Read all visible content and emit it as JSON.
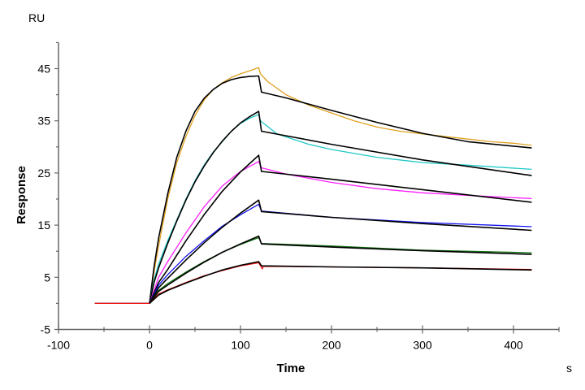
{
  "chart_data": {
    "type": "line",
    "xlabel": "Time",
    "ylabel": "Response",
    "x_unit": "s",
    "y_unit": "RU",
    "xlim": [
      -100,
      450
    ],
    "ylim": [
      -5,
      50
    ],
    "x_ticks": [
      "-100",
      "0",
      "100",
      "200",
      "300",
      "400"
    ],
    "y_ticks": [
      "-5",
      "5",
      "15",
      "25",
      "35",
      "45"
    ],
    "grid": false,
    "legend": "none",
    "series": [
      {
        "role": "data",
        "color": "#E0A020",
        "points": [
          [
            -60,
            0
          ],
          [
            0,
            0
          ],
          [
            5,
            6
          ],
          [
            10,
            11
          ],
          [
            20,
            20
          ],
          [
            30,
            27
          ],
          [
            40,
            32
          ],
          [
            50,
            36
          ],
          [
            60,
            39
          ],
          [
            70,
            41
          ],
          [
            80,
            42.3
          ],
          [
            90,
            43.3
          ],
          [
            100,
            44
          ],
          [
            110,
            44.6
          ],
          [
            120,
            45.2
          ],
          [
            122,
            44
          ],
          [
            130,
            42.5
          ],
          [
            150,
            40
          ],
          [
            175,
            38
          ],
          [
            200,
            36.5
          ],
          [
            225,
            35
          ],
          [
            250,
            33.8
          ],
          [
            275,
            33
          ],
          [
            300,
            32.5
          ],
          [
            325,
            32
          ],
          [
            350,
            31.5
          ],
          [
            375,
            31
          ],
          [
            400,
            30.7
          ],
          [
            420,
            30.3
          ]
        ]
      },
      {
        "role": "fit",
        "color": "#000000",
        "points": [
          [
            0,
            0
          ],
          [
            5,
            7
          ],
          [
            10,
            12.5
          ],
          [
            20,
            21
          ],
          [
            30,
            28
          ],
          [
            40,
            33
          ],
          [
            50,
            36.8
          ],
          [
            60,
            39.3
          ],
          [
            70,
            41
          ],
          [
            80,
            42.2
          ],
          [
            90,
            42.9
          ],
          [
            100,
            43.3
          ],
          [
            110,
            43.5
          ],
          [
            120,
            43.6
          ],
          [
            123,
            40.5
          ],
          [
            150,
            39.4
          ],
          [
            200,
            37
          ],
          [
            250,
            34.7
          ],
          [
            300,
            32.6
          ],
          [
            350,
            31
          ],
          [
            420,
            29.8
          ]
        ]
      },
      {
        "role": "data",
        "color": "#20C8C8",
        "points": [
          [
            -60,
            0
          ],
          [
            0,
            0
          ],
          [
            5,
            4.5
          ],
          [
            10,
            7.5
          ],
          [
            20,
            12
          ],
          [
            30,
            16
          ],
          [
            40,
            20
          ],
          [
            50,
            23.5
          ],
          [
            60,
            26.5
          ],
          [
            70,
            29
          ],
          [
            80,
            31
          ],
          [
            90,
            33
          ],
          [
            100,
            34.5
          ],
          [
            110,
            35.5
          ],
          [
            120,
            36.2
          ],
          [
            122,
            35
          ],
          [
            140,
            32.5
          ],
          [
            175,
            30.5
          ],
          [
            200,
            29.5
          ],
          [
            250,
            28
          ],
          [
            300,
            27
          ],
          [
            350,
            26.5
          ],
          [
            420,
            25.7
          ]
        ]
      },
      {
        "role": "fit",
        "color": "#000000",
        "points": [
          [
            0,
            0
          ],
          [
            5,
            4
          ],
          [
            10,
            6.8
          ],
          [
            20,
            11.5
          ],
          [
            30,
            15.8
          ],
          [
            40,
            19.8
          ],
          [
            50,
            23.3
          ],
          [
            60,
            26.3
          ],
          [
            70,
            28.9
          ],
          [
            80,
            31.1
          ],
          [
            90,
            33
          ],
          [
            100,
            34.6
          ],
          [
            110,
            35.8
          ],
          [
            120,
            36.8
          ],
          [
            123,
            33
          ],
          [
            200,
            30.5
          ],
          [
            300,
            27.5
          ],
          [
            420,
            24.5
          ]
        ]
      },
      {
        "role": "data",
        "color": "#FF20FF",
        "points": [
          [
            -60,
            0
          ],
          [
            0,
            0
          ],
          [
            10,
            5
          ],
          [
            20,
            8
          ],
          [
            40,
            13.5
          ],
          [
            60,
            18.5
          ],
          [
            80,
            22.5
          ],
          [
            100,
            25.3
          ],
          [
            120,
            27.2
          ],
          [
            123,
            26
          ],
          [
            150,
            24.8
          ],
          [
            200,
            23.2
          ],
          [
            250,
            22
          ],
          [
            300,
            21.2
          ],
          [
            350,
            20.7
          ],
          [
            420,
            20.1
          ]
        ]
      },
      {
        "role": "fit",
        "color": "#000000",
        "points": [
          [
            0,
            0
          ],
          [
            10,
            4
          ],
          [
            20,
            6.5
          ],
          [
            40,
            12
          ],
          [
            60,
            17
          ],
          [
            80,
            21.5
          ],
          [
            100,
            25.2
          ],
          [
            120,
            28.4
          ],
          [
            123,
            25.3
          ],
          [
            200,
            23.8
          ],
          [
            300,
            21.8
          ],
          [
            420,
            19.4
          ]
        ]
      },
      {
        "role": "data",
        "color": "#1010F0",
        "points": [
          [
            -60,
            0
          ],
          [
            0,
            0
          ],
          [
            10,
            3.5
          ],
          [
            20,
            5.5
          ],
          [
            40,
            9
          ],
          [
            60,
            12
          ],
          [
            80,
            14.8
          ],
          [
            100,
            17
          ],
          [
            120,
            19
          ],
          [
            123,
            17.7
          ],
          [
            200,
            16.5
          ],
          [
            300,
            15.5
          ],
          [
            420,
            14.7
          ]
        ]
      },
      {
        "role": "fit",
        "color": "#000000",
        "points": [
          [
            0,
            0
          ],
          [
            10,
            3
          ],
          [
            20,
            4.8
          ],
          [
            40,
            8.3
          ],
          [
            60,
            11.6
          ],
          [
            80,
            14.6
          ],
          [
            100,
            17.3
          ],
          [
            120,
            19.8
          ],
          [
            123,
            17.6
          ],
          [
            200,
            16.5
          ],
          [
            300,
            15.3
          ],
          [
            420,
            14
          ]
        ]
      },
      {
        "role": "data",
        "color": "#107010",
        "points": [
          [
            -60,
            0
          ],
          [
            0,
            0
          ],
          [
            10,
            2.5
          ],
          [
            20,
            3.8
          ],
          [
            40,
            6
          ],
          [
            60,
            8
          ],
          [
            80,
            9.8
          ],
          [
            100,
            11.3
          ],
          [
            120,
            12.6
          ],
          [
            123,
            11.5
          ],
          [
            200,
            11
          ],
          [
            300,
            10.2
          ],
          [
            420,
            9.7
          ]
        ]
      },
      {
        "role": "fit",
        "color": "#000000",
        "points": [
          [
            0,
            0
          ],
          [
            10,
            2.3
          ],
          [
            20,
            3.5
          ],
          [
            40,
            5.8
          ],
          [
            60,
            7.9
          ],
          [
            80,
            9.8
          ],
          [
            100,
            11.4
          ],
          [
            120,
            12.9
          ],
          [
            123,
            11.4
          ],
          [
            200,
            10.8
          ],
          [
            300,
            10.1
          ],
          [
            420,
            9.4
          ]
        ]
      },
      {
        "role": "data",
        "color": "#F01010",
        "points": [
          [
            -60,
            0
          ],
          [
            0,
            0
          ],
          [
            10,
            1.8
          ],
          [
            20,
            2.6
          ],
          [
            40,
            4
          ],
          [
            60,
            5.3
          ],
          [
            80,
            6.3
          ],
          [
            100,
            7.2
          ],
          [
            120,
            7.8
          ],
          [
            124,
            6.6
          ],
          [
            125,
            7.1
          ],
          [
            200,
            7
          ],
          [
            300,
            6.8
          ],
          [
            420,
            6.5
          ]
        ]
      },
      {
        "role": "fit",
        "color": "#000000",
        "points": [
          [
            0,
            0
          ],
          [
            10,
            1.6
          ],
          [
            20,
            2.5
          ],
          [
            40,
            3.9
          ],
          [
            60,
            5.2
          ],
          [
            80,
            6.4
          ],
          [
            100,
            7.3
          ],
          [
            120,
            8
          ],
          [
            123,
            7.2
          ],
          [
            200,
            7
          ],
          [
            300,
            6.8
          ],
          [
            420,
            6.4
          ]
        ]
      }
    ]
  }
}
